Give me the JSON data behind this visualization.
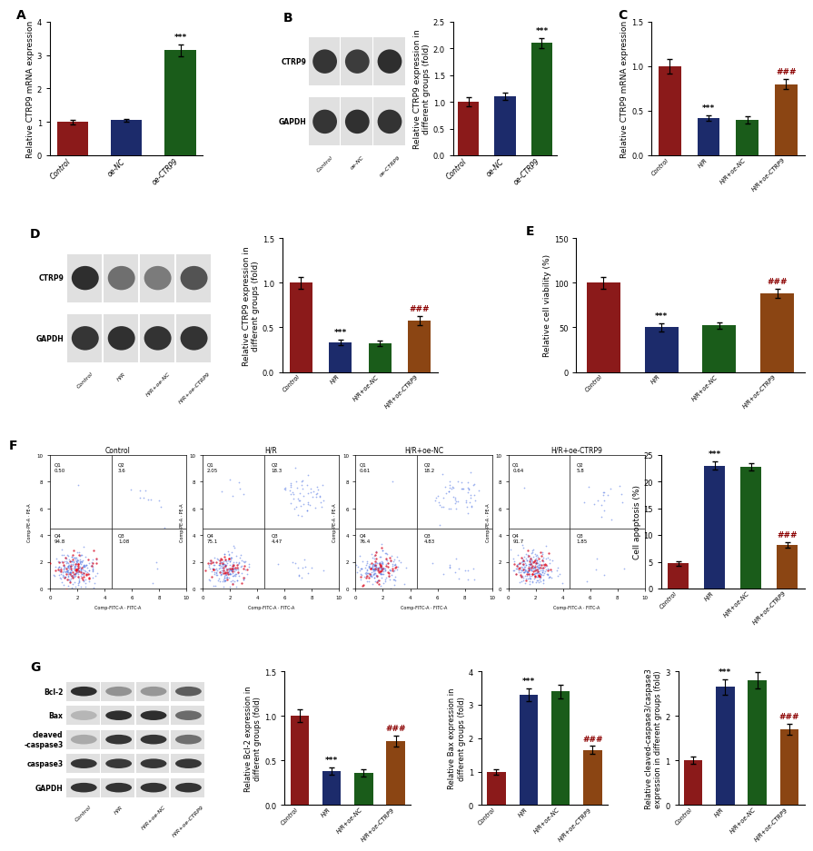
{
  "panel_A": {
    "categories": [
      "Control",
      "oe-NC",
      "oe-CTRP9"
    ],
    "values": [
      1.0,
      1.05,
      3.15
    ],
    "errors": [
      0.07,
      0.05,
      0.18
    ],
    "colors": [
      "#8B1A1A",
      "#1C2B6B",
      "#1A5C1A"
    ],
    "ylabel": "Relative CTRP9 mRNA expression",
    "ylim": [
      0,
      4
    ],
    "yticks": [
      0,
      1,
      2,
      3,
      4
    ],
    "sig_labels": [
      "",
      "",
      "***"
    ]
  },
  "panel_B_bar": {
    "categories": [
      "Control",
      "oe-NC",
      "oe-CTRP9"
    ],
    "values": [
      1.0,
      1.1,
      2.1
    ],
    "errors": [
      0.08,
      0.07,
      0.1
    ],
    "colors": [
      "#8B1A1A",
      "#1C2B6B",
      "#1A5C1A"
    ],
    "ylabel": "Relative CTRP9 expression in\ndifferent groups (fold)",
    "ylim": [
      0,
      2.5
    ],
    "yticks": [
      0,
      0.5,
      1.0,
      1.5,
      2.0,
      2.5
    ],
    "sig_labels": [
      "",
      "",
      "***"
    ]
  },
  "panel_C": {
    "categories": [
      "Control",
      "H/R",
      "H/R+oe-NC",
      "H/R+oe-CTRP9"
    ],
    "values": [
      1.0,
      0.42,
      0.4,
      0.8
    ],
    "errors": [
      0.08,
      0.03,
      0.04,
      0.06
    ],
    "colors": [
      "#8B1A1A",
      "#1C2B6B",
      "#1A5C1A",
      "#8B4513"
    ],
    "ylabel": "Relative CTRP9 mRNA expression",
    "ylim": [
      0,
      1.5
    ],
    "yticks": [
      0.0,
      0.5,
      1.0,
      1.5
    ],
    "sig_labels": [
      "",
      "***",
      "",
      "###"
    ]
  },
  "panel_D_bar": {
    "categories": [
      "Control",
      "H/R",
      "H/R+oe-NC",
      "H/R+oe-CTRP9"
    ],
    "values": [
      1.0,
      0.33,
      0.32,
      0.58
    ],
    "errors": [
      0.07,
      0.03,
      0.03,
      0.05
    ],
    "colors": [
      "#8B1A1A",
      "#1C2B6B",
      "#1A5C1A",
      "#8B4513"
    ],
    "ylabel": "Relative CTRP9 expression in\ndifferent groups (fold)",
    "ylim": [
      0,
      1.5
    ],
    "yticks": [
      0.0,
      0.5,
      1.0,
      1.5
    ],
    "sig_labels": [
      "",
      "***",
      "",
      "###"
    ]
  },
  "panel_E": {
    "categories": [
      "Control",
      "H/R",
      "H/R+oe-NC",
      "H/R+oe-CTRP9"
    ],
    "values": [
      100,
      50,
      52,
      88
    ],
    "errors": [
      7,
      5,
      4,
      5
    ],
    "colors": [
      "#8B1A1A",
      "#1C2B6B",
      "#1A5C1A",
      "#8B4513"
    ],
    "ylabel": "Relative cell viability (%)",
    "ylim": [
      0,
      150
    ],
    "yticks": [
      0,
      50,
      100,
      150
    ],
    "sig_labels": [
      "",
      "***",
      "",
      "###"
    ]
  },
  "panel_F_bar": {
    "categories": [
      "Control",
      "H/R",
      "H/R+oe-NC",
      "H/R+oe-CTRP9"
    ],
    "values": [
      4.7,
      23.0,
      22.8,
      8.2
    ],
    "errors": [
      0.4,
      0.8,
      0.7,
      0.5
    ],
    "colors": [
      "#8B1A1A",
      "#1C2B6B",
      "#1A5C1A",
      "#8B4513"
    ],
    "ylabel": "Cell apoptosis (%)",
    "ylim": [
      0,
      25
    ],
    "yticks": [
      0,
      5,
      10,
      15,
      20,
      25
    ],
    "sig_labels": [
      "",
      "***",
      "",
      "###"
    ]
  },
  "panel_G_bcl2": {
    "categories": [
      "Control",
      "H/R",
      "H/R+oe-NC",
      "H/R+oe-CTRP9"
    ],
    "values": [
      1.0,
      0.38,
      0.36,
      0.72
    ],
    "errors": [
      0.07,
      0.04,
      0.04,
      0.06
    ],
    "colors": [
      "#8B1A1A",
      "#1C2B6B",
      "#1A5C1A",
      "#8B4513"
    ],
    "ylabel": "Relative Bcl-2 expression in\ndifferent groups (fold)",
    "ylim": [
      0,
      1.5
    ],
    "yticks": [
      0.0,
      0.5,
      1.0,
      1.5
    ],
    "sig_labels": [
      "",
      "***",
      "",
      "###"
    ]
  },
  "panel_G_bax": {
    "categories": [
      "Control",
      "H/R",
      "H/R+oe-NC",
      "H/R+oe-CTRP9"
    ],
    "values": [
      1.0,
      3.3,
      3.4,
      1.65
    ],
    "errors": [
      0.08,
      0.2,
      0.2,
      0.12
    ],
    "colors": [
      "#8B1A1A",
      "#1C2B6B",
      "#1A5C1A",
      "#8B4513"
    ],
    "ylabel": "Relative Bax expression in\ndifferent groups (fold)",
    "ylim": [
      0,
      4
    ],
    "yticks": [
      0,
      1,
      2,
      3,
      4
    ],
    "sig_labels": [
      "",
      "***",
      "",
      "###"
    ]
  },
  "panel_G_casp": {
    "categories": [
      "Control",
      "H/R",
      "H/R+oe-NC",
      "H/R+oe-CTRP9"
    ],
    "values": [
      1.0,
      2.65,
      2.8,
      1.7
    ],
    "errors": [
      0.08,
      0.18,
      0.18,
      0.13
    ],
    "colors": [
      "#8B1A1A",
      "#1C2B6B",
      "#1A5C1A",
      "#8B4513"
    ],
    "ylabel": "Relative cleaved-caspase3/caspase3\nexpression in different groups (fold)",
    "ylim": [
      0,
      3
    ],
    "yticks": [
      0,
      1,
      2,
      3
    ],
    "sig_labels": [
      "",
      "***",
      "",
      "###"
    ]
  },
  "flow_data": {
    "panels": [
      "Control",
      "H/R",
      "H/R+oe-NC",
      "H/R+oe-CTRP9"
    ],
    "Q1": [
      0.5,
      2.05,
      0.61,
      0.64
    ],
    "Q2": [
      3.63,
      18.3,
      18.2,
      5.78
    ],
    "Q3": [
      1.08,
      4.47,
      4.83,
      1.85
    ],
    "Q4": [
      94.8,
      75.1,
      76.4,
      91.7
    ]
  },
  "wb_B_cols": [
    "Control",
    "oe-NC",
    "oe-CTRP9"
  ],
  "wb_B_rows": [
    "CTRP9",
    "GAPDH"
  ],
  "wb_D_cols": [
    "Control",
    "H/R",
    "H/R+oe-NC",
    "H/R+oe-CTRP9"
  ],
  "wb_D_rows": [
    "CTRP9",
    "GAPDH"
  ],
  "wb_G_cols": [
    "Control",
    "H/R",
    "H/R+oe-NC",
    "H/R+oe-CTRP9"
  ],
  "wb_G_rows": [
    "Bcl-2",
    "Bax",
    "cleaved\n-caspase3",
    "caspase3",
    "GAPDH"
  ]
}
